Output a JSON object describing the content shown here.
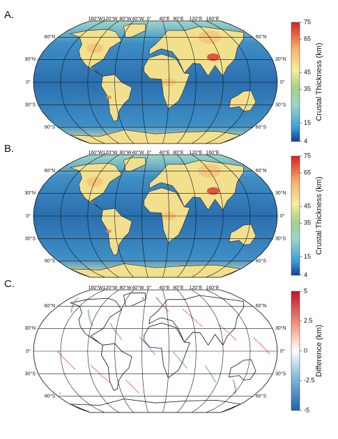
{
  "panels": [
    {
      "label": "A.",
      "lon_labels": [
        "160°W",
        "120°W",
        "80°W",
        "40°W",
        "0°",
        "40°E",
        "80°E",
        "120°E",
        "160°E"
      ],
      "lat_labels": [
        "60°N",
        "30°N",
        "0°",
        "30°S",
        "60°S"
      ],
      "colorbar": {
        "label": "Crustal Thickness (km)",
        "range": [
          4,
          75
        ],
        "ticks": [
          75,
          65,
          45,
          35,
          15,
          4
        ]
      }
    },
    {
      "label": "B.",
      "lon_labels": [
        "160°W",
        "120°W",
        "80°W",
        "40°W",
        "0°",
        "40°E",
        "80°E",
        "120°E",
        "160°E"
      ],
      "lat_labels": [
        "60°N",
        "30°N",
        "0°",
        "30°S",
        "60°S"
      ],
      "colorbar": {
        "label": "Crustal Thickness (km)",
        "range": [
          4,
          75
        ],
        "ticks": [
          75,
          65,
          45,
          35,
          15,
          4
        ]
      }
    },
    {
      "label": "C.",
      "lon_labels": [
        "160°W",
        "120°W",
        "80°W",
        "40°W",
        "0°",
        "40°E",
        "80°E",
        "120°E",
        "160°E"
      ],
      "lat_labels": [
        "60°N",
        "30°N",
        "0°",
        "30°S",
        "60°S"
      ],
      "colorbar": {
        "label": "Difference (km)",
        "range": [
          -5,
          5
        ],
        "ticks": [
          5,
          2.5,
          0,
          -2.5,
          -5
        ]
      }
    }
  ]
}
